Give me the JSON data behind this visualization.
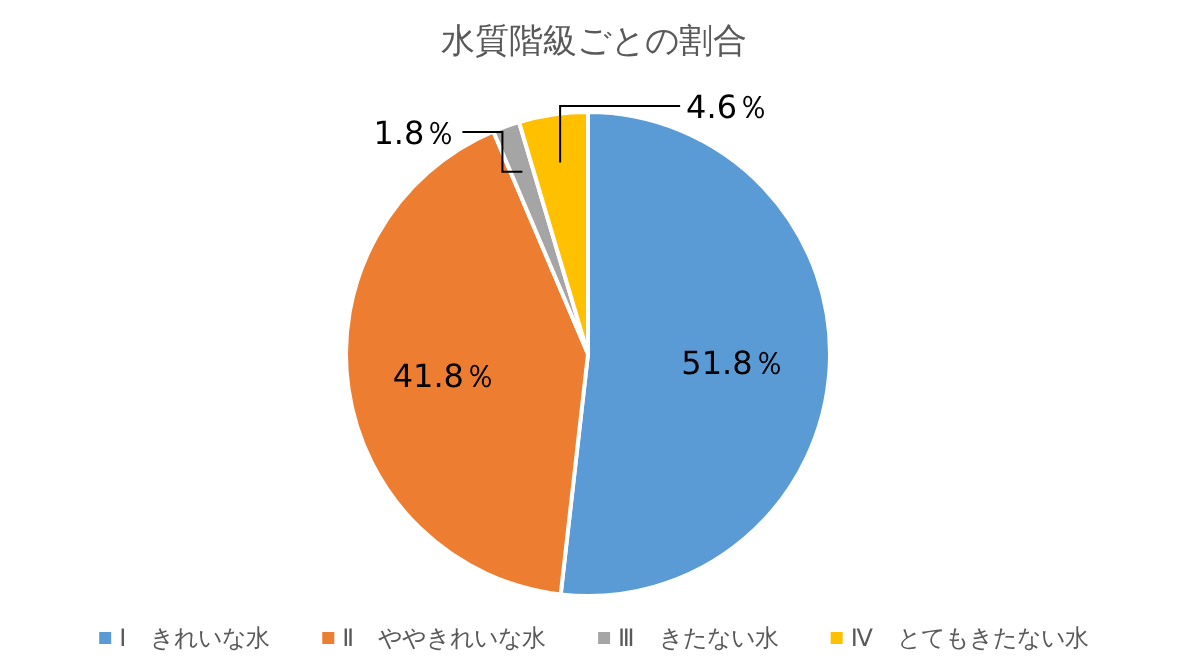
{
  "chart_data": {
    "type": "pie",
    "title": "水質階級ごとの割合",
    "categories": [
      "Ⅰ　きれいな水",
      "Ⅱ　ややきれいな水",
      "Ⅲ　きたない水",
      "Ⅳ　とてもきたない水"
    ],
    "values": [
      51.8,
      41.8,
      1.8,
      4.6
    ],
    "colors": [
      "#5b9bd5",
      "#ed7d31",
      "#a5a5a5",
      "#ffc000"
    ],
    "value_labels": [
      "51.8％",
      "41.8％",
      "1.8％",
      "4.6％"
    ],
    "legend": "bottom"
  }
}
